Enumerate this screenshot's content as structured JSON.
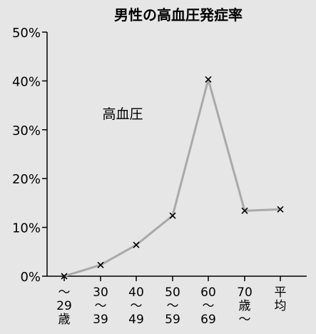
{
  "chart_data": {
    "type": "line",
    "title": "男性の高血圧発症率",
    "annotation": "高血圧",
    "y_ticks": [
      "0%",
      "10%",
      "20%",
      "30%",
      "40%",
      "50%"
    ],
    "ylim": [
      0,
      50
    ],
    "categories": [
      [
        "〜",
        "29",
        "歳"
      ],
      [
        "30",
        "〜",
        "39"
      ],
      [
        "40",
        "〜",
        "49"
      ],
      [
        "50",
        "〜",
        "59"
      ],
      [
        "60",
        "〜",
        "69"
      ],
      [
        "70",
        "歳",
        "〜"
      ],
      [
        "平",
        "均"
      ]
    ],
    "values": [
      0,
      2.3,
      6.4,
      12.4,
      40.3,
      13.4,
      13.7
    ],
    "line_color": "#a9a9a9",
    "marker_color": "#000000"
  }
}
